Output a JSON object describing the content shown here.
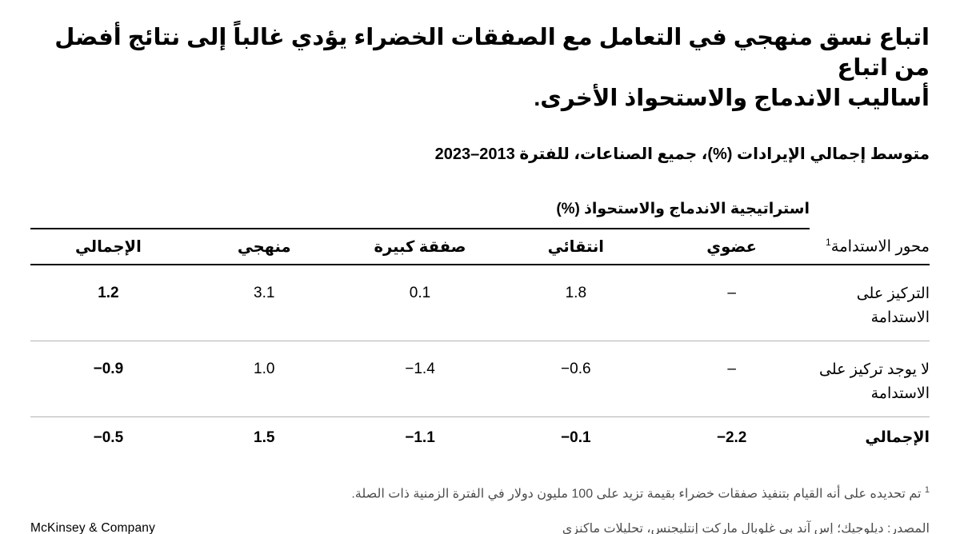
{
  "title": {
    "line1": "اتباع نسق منهجي في التعامل مع الصفقات الخضراء يؤدي غالباً إلى نتائج أفضل من اتباع",
    "line2": "أساليب الاندماج والاستحواذ الأخرى."
  },
  "subtitle": "متوسط إجمالي الإيرادات (%)، جميع الصناعات، للفترة 2013–2023",
  "table": {
    "group_header": "استراتيجية الاندماج والاستحواذ (%)",
    "row_label_header": "محور الاستدامة",
    "row_label_header_marker": "1",
    "columns": [
      "عضوي",
      "انتقائي",
      "صفقة كبيرة",
      "منهجي",
      "الإجمالي"
    ],
    "rows": [
      {
        "label": "التركيز على الاستدامة",
        "organic": "–",
        "selective": "1.8",
        "large_deal": "0.1",
        "programmatic": "3.1",
        "total": "1.2"
      },
      {
        "label": "لا يوجد تركيز على الاستدامة",
        "organic": "–",
        "selective": "−0.6",
        "large_deal": "−1.4",
        "programmatic": "1.0",
        "total": "−0.9"
      },
      {
        "label": "الإجمالي",
        "organic": "−2.2",
        "selective": "−0.1",
        "large_deal": "−1.1",
        "programmatic": "1.5",
        "total": "−0.5"
      }
    ]
  },
  "chart_data": {
    "type": "table",
    "title": "اتباع نسق منهجي في التعامل مع الصفقات الخضراء يؤدي غالباً إلى نتائج أفضل من اتباع أساليب الاندماج والاستحواذ الأخرى.",
    "subtitle": "متوسط إجمالي الإيرادات (%)، جميع الصناعات، للفترة 2013–2023",
    "group_header": "استراتيجية الاندماج والاستحواذ (%)",
    "row_header": "محور الاستدامة",
    "columns": [
      "عضوي",
      "انتقائي",
      "صفقة كبيرة",
      "منهجي",
      "الإجمالي"
    ],
    "rows": [
      {
        "label": "التركيز على الاستدامة",
        "values": [
          null,
          1.8,
          0.1,
          3.1,
          1.2
        ]
      },
      {
        "label": "لا يوجد تركيز على الاستدامة",
        "values": [
          null,
          -0.6,
          -1.4,
          1.0,
          -0.9
        ]
      },
      {
        "label": "الإجمالي",
        "values": [
          -2.2,
          -0.1,
          -1.1,
          1.5,
          -0.5
        ]
      }
    ],
    "null_display": "–"
  },
  "footnote": {
    "marker": "1",
    "text": "تم تحديده على أنه القيام بتنفيذ صفقات خضراء بقيمة تزيد على 100 مليون دولار في الفترة الزمنية ذات الصلة."
  },
  "source": "المصدر: ديلوجيك؛ إس آند بي غلوبال ماركت إنتليجنس، تحليلات ماكنزي",
  "logo": "McKinsey & Company",
  "colors": {
    "text": "#000000",
    "muted": "#4d4d4d",
    "rule_strong": "#000000",
    "rule_light": "#b3b3b3"
  }
}
